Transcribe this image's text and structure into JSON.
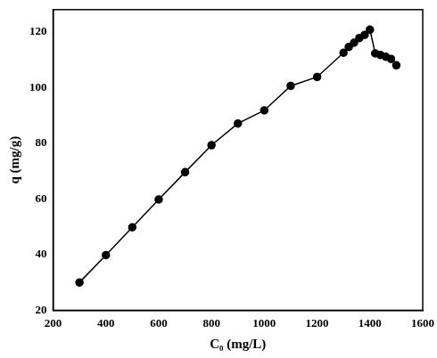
{
  "chart_data": {
    "type": "line",
    "x_label": "C₀ (mg/L)",
    "y_label": "q (mg/g)",
    "x": [
      300,
      400,
      500,
      600,
      700,
      800,
      900,
      1000,
      1100,
      1200,
      1300,
      1320,
      1340,
      1360,
      1380,
      1400,
      1420,
      1440,
      1460,
      1480,
      1500
    ],
    "values": [
      30,
      39.8,
      49.8,
      59.8,
      69.6,
      79.3,
      87.1,
      91.8,
      100.6,
      103.8,
      112.5,
      114.6,
      116.1,
      117.8,
      118.9,
      120.8,
      112.3,
      111.7,
      111.1,
      110.3,
      108
    ],
    "color": "#000000",
    "marker": "circle",
    "line_style": "solid",
    "xlim": [
      200,
      1600
    ],
    "xticks": [
      200,
      400,
      600,
      800,
      1000,
      1200,
      1400,
      1600
    ],
    "ylim": [
      20,
      128
    ],
    "yticks": [
      20,
      40,
      60,
      80,
      100,
      120
    ],
    "grid": false
  }
}
